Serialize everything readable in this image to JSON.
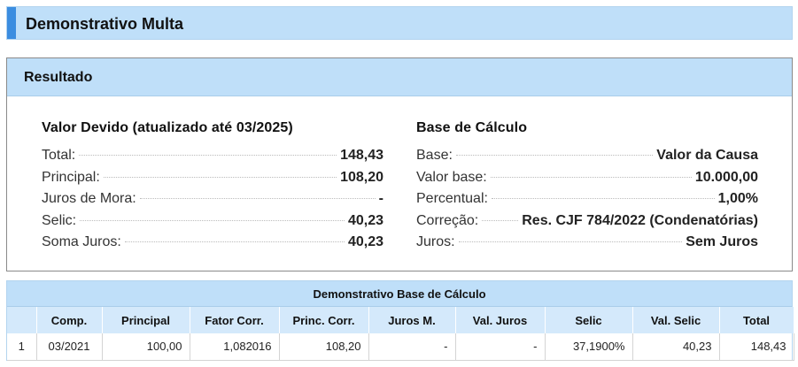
{
  "header": {
    "title": "Demonstrativo Multa",
    "accent_color": "#3b8de0"
  },
  "result": {
    "panel_title": "Resultado",
    "valor_devido": {
      "heading": "Valor Devido (atualizado até 03/2025)",
      "rows": [
        {
          "label": "Total:",
          "value": "148,43"
        },
        {
          "label": "Principal:",
          "value": "108,20"
        },
        {
          "label": "Juros de Mora:",
          "value": "-"
        },
        {
          "label": "Selic:",
          "value": "40,23"
        },
        {
          "label": "Soma Juros:",
          "value": "40,23"
        }
      ]
    },
    "base_calculo": {
      "heading": "Base de Cálculo",
      "rows": [
        {
          "label": "Base:",
          "value": "Valor da Causa"
        },
        {
          "label": "Valor base:",
          "value": "10.000,00"
        },
        {
          "label": "Percentual:",
          "value": "1,00%"
        },
        {
          "label": "Correção:",
          "value": "Res. CJF 784/2022 (Condenatórias)"
        },
        {
          "label": "Juros:",
          "value": "Sem Juros"
        }
      ]
    }
  },
  "calc_table": {
    "title": "Demonstrativo Base de Cálculo",
    "columns": [
      "",
      "Comp.",
      "Principal",
      "Fator Corr.",
      "Princ. Corr.",
      "Juros M.",
      "Val. Juros",
      "Selic",
      "Val. Selic",
      "Total"
    ],
    "rows": [
      [
        "1",
        "03/2021",
        "100,00",
        "1,082016",
        "108,20",
        "-",
        "-",
        "37,1900%",
        "40,23",
        "148,43"
      ]
    ]
  }
}
